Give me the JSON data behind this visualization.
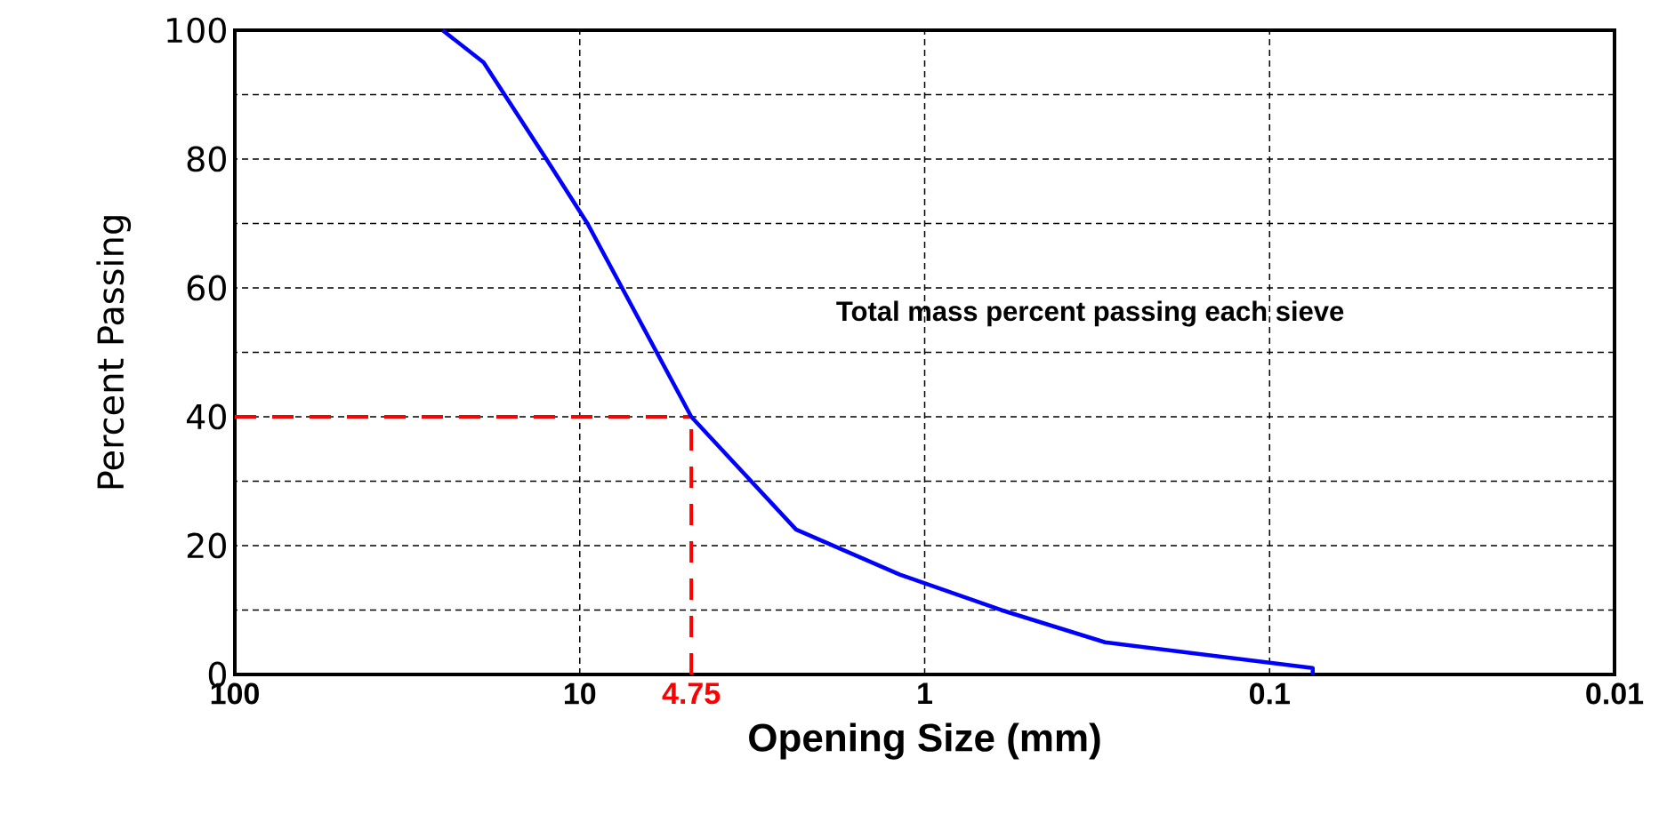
{
  "chart_data": {
    "type": "line",
    "xlabel": "Opening Size (mm)",
    "ylabel": "Percent Passing",
    "log": "x",
    "xlim": [
      100,
      0.01
    ],
    "ylim": [
      0,
      100
    ],
    "xticks": [
      100,
      10,
      1,
      0.1,
      0.01
    ],
    "yticks": [
      0,
      20,
      40,
      60,
      80,
      100
    ],
    "grid": true,
    "marker": "none",
    "line_style": "solid",
    "series": [
      {
        "color": "#0000ff",
        "x": [
          25,
          19,
          12.5,
          9.5,
          4.75,
          2.36,
          1.18,
          0.6,
          0.3,
          0.075,
          0.075
        ],
        "values": [
          100,
          95,
          80,
          70,
          40,
          22.5,
          15.5,
          10,
          5,
          1,
          0
        ]
      }
    ],
    "ref_lines": [
      {
        "axis": "x",
        "value": 4.75,
        "label": "4.75",
        "color": "#ff0000",
        "line_style": "dashed"
      },
      {
        "axis": "y",
        "value": 40,
        "color": "#ff0000",
        "line_style": "dashed"
      }
    ],
    "annotations": [
      "Total mass percent passing each sieve"
    ]
  }
}
